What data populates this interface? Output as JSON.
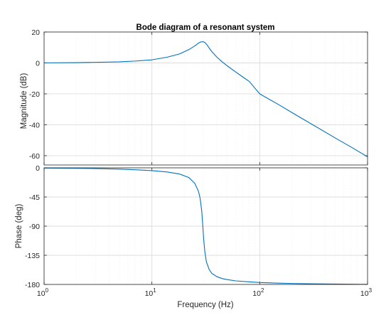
{
  "chart_data": {
    "type": "line",
    "title": "Bode diagram of a resonant system",
    "xlabel": "Frequency  (Hz)",
    "x_scale": "log",
    "xlim": [
      1,
      1000
    ],
    "x_ticks": [
      {
        "value": 1,
        "base": "10",
        "exp": "0"
      },
      {
        "value": 10,
        "base": "10",
        "exp": "1"
      },
      {
        "value": 100,
        "base": "10",
        "exp": "2"
      },
      {
        "value": 1000,
        "base": "10",
        "exp": "3"
      }
    ],
    "grid": true,
    "minor_grid": true,
    "line_color": "#0072BD",
    "panels": [
      {
        "name": "magnitude",
        "ylabel": "Magnitude (dB)",
        "ylim": [
          -66,
          20
        ],
        "yticks": [
          20,
          0,
          -20,
          -40,
          -60
        ],
        "series": [
          {
            "x": [
              1,
              2,
              3,
              5,
              7,
              10,
              14,
              18,
              22,
              25,
              27,
              28.5,
              30,
              31,
              32.5,
              34,
              36,
              40,
              45,
              50,
              60,
              70,
              80,
              100,
              150,
              200,
              300,
              500,
              700,
              1000
            ],
            "y": [
              0.05,
              0.2,
              0.4,
              0.7,
              1.2,
              2.0,
              3.8,
              5.8,
              8.6,
              11.0,
              12.8,
              13.6,
              13.7,
              13.2,
              11.6,
              9.6,
              7.3,
              3.8,
              0.6,
              -1.9,
              -5.9,
              -9.2,
              -12.0,
              -20.0,
              -27.0,
              -32.2,
              -39.4,
              -48.5,
              -54.3,
              -60.7
            ]
          }
        ]
      },
      {
        "name": "phase",
        "ylabel": "Phase (deg)",
        "ylim": [
          -180,
          0
        ],
        "yticks": [
          0,
          -45,
          -90,
          -135,
          -180
        ],
        "series": [
          {
            "x": [
              1,
              2,
              3,
              5,
              7,
              10,
              14,
              18,
              22,
              25,
              27,
              28,
              29,
              29.6,
              30.2,
              31,
              32,
              34,
              36,
              40,
              45,
              50,
              60,
              80,
              100,
              150,
              200,
              300,
              500,
              1000
            ],
            "y": [
              -0.4,
              -0.8,
              -1.2,
              -2.0,
              -2.9,
              -4.3,
              -6.5,
              -9.5,
              -15.0,
              -24.0,
              -36.0,
              -47.0,
              -67.0,
              -88.0,
              -110.0,
              -130.0,
              -145.0,
              -157.0,
              -163.0,
              -168.0,
              -171.0,
              -172.5,
              -174.5,
              -176.0,
              -177.0,
              -178.0,
              -178.5,
              -179.0,
              -179.4,
              -179.8
            ]
          }
        ]
      }
    ]
  }
}
